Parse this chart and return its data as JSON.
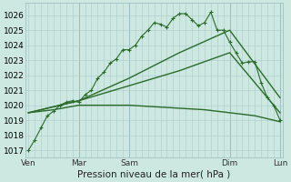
{
  "xlabel": "Pression niveau de la mer( hPa )",
  "bg_color": "#cce8e0",
  "grid_color": "#aacccc",
  "line_color": "#2a6b2a",
  "ylim": [
    1016.5,
    1026.8
  ],
  "yticks": [
    1017,
    1018,
    1019,
    1020,
    1021,
    1022,
    1023,
    1024,
    1025,
    1026
  ],
  "xlim": [
    -0.5,
    40.5
  ],
  "x_day_labels": [
    "Ven",
    "Mar",
    "Sam",
    "Dim",
    "Lun"
  ],
  "x_day_positions": [
    0,
    8,
    16,
    32,
    40
  ],
  "vline_positions": [
    8,
    16,
    32,
    40
  ],
  "series0_x": [
    0,
    1,
    2,
    3,
    4,
    5,
    6,
    7,
    8,
    9,
    10,
    11,
    12,
    13,
    14,
    15,
    16,
    17,
    18,
    19,
    20,
    21,
    22,
    23,
    24,
    25,
    26,
    27,
    28,
    29,
    30,
    31,
    32,
    33,
    34,
    35,
    36,
    37,
    38,
    39,
    40
  ],
  "series0_y": [
    1017.0,
    1017.7,
    1018.5,
    1019.3,
    1019.6,
    1020.0,
    1020.2,
    1020.3,
    1020.2,
    1020.7,
    1021.0,
    1021.8,
    1022.2,
    1022.8,
    1023.1,
    1023.7,
    1023.7,
    1024.0,
    1024.6,
    1025.0,
    1025.5,
    1025.4,
    1025.2,
    1025.8,
    1026.1,
    1026.1,
    1025.7,
    1025.3,
    1025.5,
    1026.2,
    1025.0,
    1025.0,
    1024.2,
    1023.5,
    1022.8,
    1022.9,
    1022.9,
    1021.5,
    1020.5,
    1020.0,
    1019.0
  ],
  "series1_x": [
    0,
    8,
    16,
    24,
    32,
    40
  ],
  "series1_y": [
    1019.5,
    1020.3,
    1021.8,
    1023.5,
    1025.0,
    1020.5
  ],
  "series2_x": [
    0,
    8,
    16,
    24,
    32,
    40
  ],
  "series2_y": [
    1019.5,
    1020.3,
    1021.3,
    1022.3,
    1023.5,
    1019.5
  ],
  "series3_x": [
    0,
    4,
    8,
    12,
    16,
    20,
    24,
    28,
    32,
    36,
    40
  ],
  "series3_y": [
    1019.5,
    1019.7,
    1020.0,
    1020.0,
    1020.0,
    1019.9,
    1019.8,
    1019.7,
    1019.5,
    1019.3,
    1018.9
  ]
}
